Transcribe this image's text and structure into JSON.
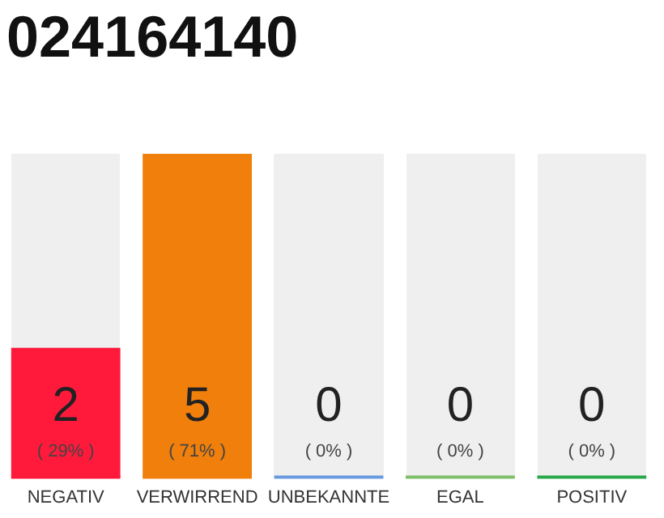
{
  "chart_data": {
    "type": "bar",
    "title": "024164140",
    "categories": [
      "NEGATIV",
      "VERWIRREND",
      "UNBEKANNTE",
      "EGAL",
      "POSITIV"
    ],
    "values": [
      2,
      5,
      0,
      0,
      0
    ],
    "value_labels": [
      "2\n( 29% )",
      "5\n( 71% )",
      "0\n( 0% )",
      "0\n( 0% )",
      "0\n( 0% )"
    ],
    "colors": [
      "#ff1a3c",
      "#f07f0c",
      "#6a9be0",
      "#7fbf6a",
      "#2aa84a"
    ],
    "tick_labels": "x",
    "grid": false,
    "legend": false
  }
}
